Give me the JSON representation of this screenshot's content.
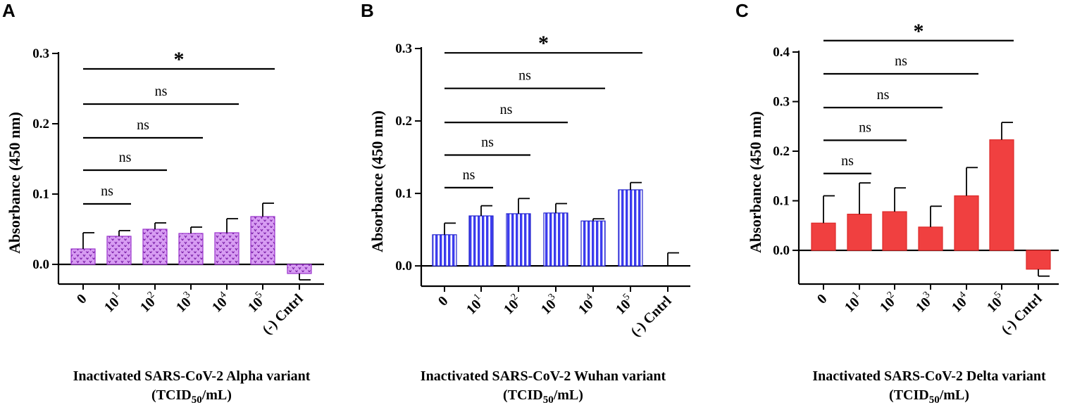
{
  "chart_data": [
    {
      "type": "bar",
      "panel_label": "A",
      "categories": [
        "0",
        "10",
        "10",
        "10",
        "10",
        "10",
        "(-) Cntrl"
      ],
      "category_exponents": [
        "",
        "1",
        "2",
        "3",
        "4",
        "5",
        ""
      ],
      "values": [
        0.022,
        0.04,
        0.05,
        0.044,
        0.045,
        0.068,
        -0.013
      ],
      "errors": [
        0.023,
        0.008,
        0.009,
        0.009,
        0.02,
        0.019,
        0.009
      ],
      "ylabel": "Absorbance  (450 nm)",
      "ylim": [
        -0.028,
        0.3
      ],
      "yticks": [
        0.0,
        0.1,
        0.2,
        0.3
      ],
      "ytick_labels": [
        "0.0",
        "0.1",
        "0.2",
        "0.3"
      ],
      "xlabel_line1": "Inactivated SARS-CoV-2 Alpha variant",
      "xlabel_line2_pre": "(TCID",
      "xlabel_line2_sub": "50",
      "xlabel_line2_post": "/mL)",
      "bar_color": "#cc88ee",
      "bar_edge": "#9933cc",
      "pattern": "dots",
      "comparisons": [
        {
          "from": 0,
          "to": 1,
          "y": 0.086,
          "label": "ns"
        },
        {
          "from": 0,
          "to": 2,
          "y": 0.134,
          "label": "ns"
        },
        {
          "from": 0,
          "to": 3,
          "y": 0.18,
          "label": "ns"
        },
        {
          "from": 0,
          "to": 4,
          "y": 0.228,
          "label": "ns"
        },
        {
          "from": 0,
          "to": 5,
          "y": 0.278,
          "label": "*"
        }
      ]
    },
    {
      "type": "bar",
      "panel_label": "B",
      "categories": [
        "0",
        "10",
        "10",
        "10",
        "10",
        "10",
        "(-) Cntrl"
      ],
      "category_exponents": [
        "",
        "1",
        "2",
        "3",
        "4",
        "5",
        ""
      ],
      "values": [
        0.043,
        0.069,
        0.072,
        0.073,
        0.062,
        0.105,
        0.0
      ],
      "errors": [
        0.016,
        0.014,
        0.021,
        0.013,
        0.003,
        0.01,
        0.018
      ],
      "ylabel": "Absorbance  (450 nm)",
      "ylim": [
        -0.028,
        0.3
      ],
      "yticks": [
        0.0,
        0.1,
        0.2,
        0.3
      ],
      "ytick_labels": [
        "0.0",
        "0.1",
        "0.2",
        "0.3"
      ],
      "xlabel_line1": "Inactivated SARS-CoV-2 Wuhan variant",
      "xlabel_line2_pre": "(TCID",
      "xlabel_line2_sub": "50",
      "xlabel_line2_post": "/mL)",
      "bar_color": "#3b3bee",
      "bar_edge": "#2222cc",
      "pattern": "stripes",
      "comparisons": [
        {
          "from": 0,
          "to": 1,
          "y": 0.108,
          "label": "ns"
        },
        {
          "from": 0,
          "to": 2,
          "y": 0.153,
          "label": "ns"
        },
        {
          "from": 0,
          "to": 3,
          "y": 0.198,
          "label": "ns"
        },
        {
          "from": 0,
          "to": 4,
          "y": 0.245,
          "label": "ns"
        },
        {
          "from": 0,
          "to": 5,
          "y": 0.294,
          "label": "*"
        }
      ]
    },
    {
      "type": "bar",
      "panel_label": "C",
      "categories": [
        "0",
        "10",
        "10",
        "10",
        "10",
        "10",
        "(-) Cntrl"
      ],
      "category_exponents": [
        "",
        "1",
        "2",
        "3",
        "4",
        "5",
        ""
      ],
      "values": [
        0.055,
        0.073,
        0.078,
        0.047,
        0.11,
        0.223,
        -0.038
      ],
      "errors": [
        0.055,
        0.063,
        0.048,
        0.042,
        0.057,
        0.035,
        0.014
      ],
      "ylabel": "Absorbance  (450 nm)",
      "ylim": [
        -0.068,
        0.4
      ],
      "yticks": [
        0.0,
        0.1,
        0.2,
        0.3,
        0.4
      ],
      "ytick_labels": [
        "0.0",
        "0.1",
        "0.2",
        "0.3",
        "0.4"
      ],
      "xlabel_line1": "Inactivated SARS-CoV-2 Delta variant",
      "xlabel_line2_pre": "(TCID",
      "xlabel_line2_sub": "50",
      "xlabel_line2_post": "/mL)",
      "bar_color": "#f04040",
      "bar_edge": "#dd2a2a",
      "pattern": "solid",
      "comparisons": [
        {
          "from": 0,
          "to": 1,
          "y": 0.155,
          "label": "ns"
        },
        {
          "from": 0,
          "to": 2,
          "y": 0.222,
          "label": "ns"
        },
        {
          "from": 0,
          "to": 3,
          "y": 0.288,
          "label": "ns"
        },
        {
          "from": 0,
          "to": 4,
          "y": 0.356,
          "label": "ns"
        },
        {
          "from": 0,
          "to": 5,
          "y": 0.423,
          "label": "*"
        }
      ]
    }
  ]
}
